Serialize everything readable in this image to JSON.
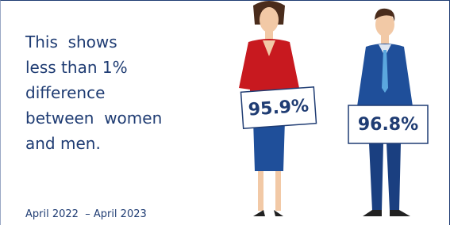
{
  "text_lines": [
    "This  shows",
    "less than 1%",
    "difference",
    "between  women",
    "and men."
  ],
  "period": "April 2022  – April 2023",
  "figures": [
    {
      "label": "95.9%"
    },
    {
      "label": "96.8%"
    }
  ]
}
